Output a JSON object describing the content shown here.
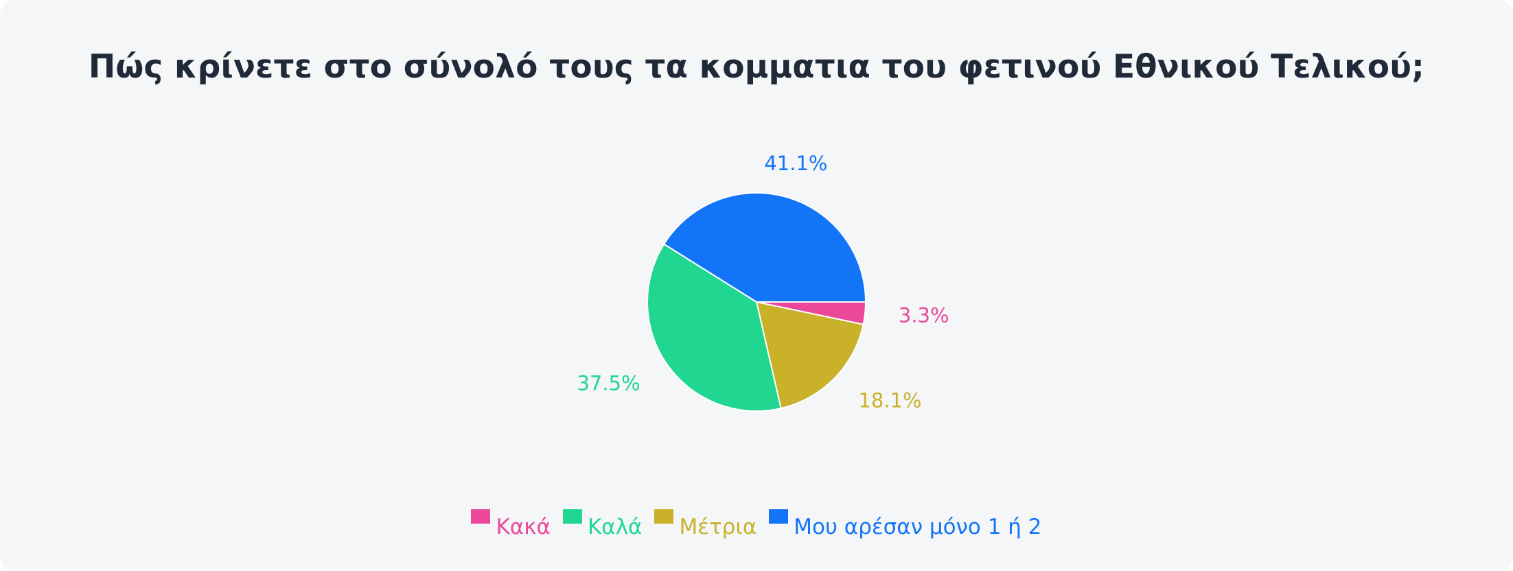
{
  "chart_data": {
    "type": "pie",
    "title": "Πώς κρίνετε στο σύνολό τους τα κομματια του φετινού Εθνικού Τελικού;",
    "start_angle_deg": 0,
    "direction": "clockwise",
    "slices": [
      {
        "label": "Κακά",
        "value": 3.3,
        "value_label": "3.3%",
        "color": "#ec4899"
      },
      {
        "label": "Μέτρια",
        "value": 18.1,
        "value_label": "18.1%",
        "color": "#c9b22a"
      },
      {
        "label": "Καλά",
        "value": 37.5,
        "value_label": "37.5%",
        "color": "#20d690"
      },
      {
        "label": "Μου αρέσαν μόνο 1 ή 2",
        "value": 41.1,
        "value_label": "41.1%",
        "color": "#1274f6"
      }
    ],
    "legend": {
      "position": "bottom",
      "order": [
        "Κακά",
        "Καλά",
        "Μέτρια",
        "Μου αρέσαν μόνο 1 ή 2"
      ]
    }
  }
}
